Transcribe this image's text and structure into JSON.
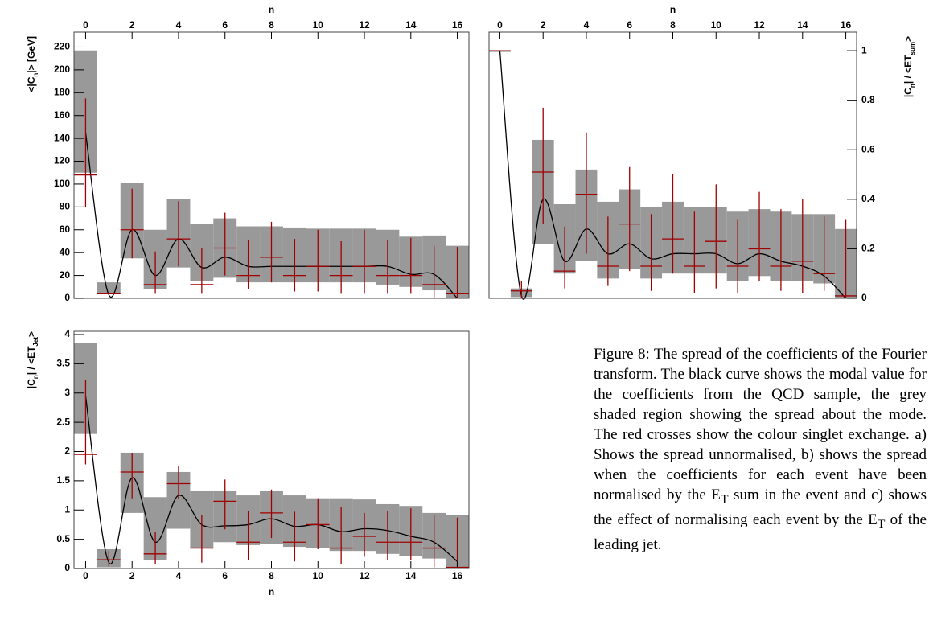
{
  "chart_data": [
    {
      "type": "spread",
      "x_label": "n",
      "y_label": [
        "<|C",
        "n",
        "|> [GeV]"
      ],
      "x_axis": "top",
      "y_axis": "left",
      "x": [
        0,
        1,
        2,
        3,
        4,
        5,
        6,
        7,
        8,
        9,
        10,
        11,
        12,
        13,
        14,
        15,
        16
      ],
      "xlim": [
        -0.5,
        16.5
      ],
      "xticks": [
        0,
        2,
        4,
        6,
        8,
        10,
        12,
        14,
        16
      ],
      "ylim": [
        0,
        233
      ],
      "yticks": [
        0,
        20,
        40,
        60,
        80,
        100,
        120,
        140,
        160,
        180,
        200,
        220
      ],
      "band": {
        "color": "#999999",
        "lower": [
          110,
          4,
          35,
          8,
          27,
          15,
          18,
          14,
          14,
          14,
          14,
          14,
          14,
          12,
          10,
          7,
          0
        ],
        "upper": [
          217,
          14,
          101,
          60,
          87,
          65,
          70,
          63,
          63,
          62,
          61,
          61,
          61,
          60,
          54,
          55,
          46
        ]
      },
      "points": {
        "color": "#a00000",
        "values": [
          108,
          4,
          60,
          12,
          52,
          12,
          44,
          20,
          36,
          20,
          28,
          20,
          28,
          20,
          20,
          12,
          4
        ],
        "lower": [
          80,
          4,
          35,
          4,
          28,
          4,
          20,
          8,
          14,
          6,
          6,
          4,
          4,
          4,
          4,
          0,
          0
        ],
        "upper": [
          175,
          4,
          96,
          41,
          85,
          44,
          75,
          51,
          67,
          52,
          60,
          50,
          60,
          51,
          53,
          46,
          45
        ]
      },
      "curve": {
        "color": "#000000",
        "values": [
          145,
          3,
          60,
          20,
          52,
          27,
          36,
          28,
          28,
          28,
          28,
          28,
          28,
          28,
          21,
          21,
          0
        ]
      }
    },
    {
      "type": "spread",
      "x_label": "n",
      "y_label": [
        "|C",
        "n",
        "| / <ET",
        "sum",
        ">"
      ],
      "x_axis": "top",
      "y_axis": "right",
      "x": [
        0,
        1,
        2,
        3,
        4,
        5,
        6,
        7,
        8,
        9,
        10,
        11,
        12,
        13,
        14,
        15,
        16
      ],
      "xlim": [
        -0.5,
        16.5
      ],
      "xticks": [
        0,
        2,
        4,
        6,
        8,
        10,
        12,
        14,
        16
      ],
      "ylim": [
        0,
        1.075
      ],
      "yticks": [
        0,
        0.2,
        0.4,
        0.6,
        0.8,
        1
      ],
      "band": {
        "color": "#999999",
        "lower": [
          0.995,
          0.005,
          0.22,
          0.1,
          0.15,
          0.08,
          0.12,
          0.08,
          0.1,
          0.1,
          0.1,
          0.07,
          0.09,
          0.07,
          0.07,
          0.06,
          0
        ],
        "upper": [
          1.0,
          0.04,
          0.64,
          0.38,
          0.52,
          0.39,
          0.44,
          0.37,
          0.39,
          0.37,
          0.37,
          0.35,
          0.36,
          0.35,
          0.34,
          0.34,
          0.28
        ]
      },
      "points": {
        "color": "#a00000",
        "values": [
          1.0,
          0.03,
          0.51,
          0.11,
          0.42,
          0.13,
          0.3,
          0.13,
          0.24,
          0.13,
          0.23,
          0.13,
          0.2,
          0.13,
          0.15,
          0.1,
          0.01
        ],
        "lower": [
          1.0,
          0,
          0.3,
          0.04,
          0.18,
          0.05,
          0.11,
          0.03,
          0.1,
          0.02,
          0.04,
          0.02,
          0.07,
          0.03,
          0.02,
          0.03,
          0
        ],
        "upper": [
          1.0,
          0.07,
          0.77,
          0.29,
          0.67,
          0.33,
          0.53,
          0.34,
          0.5,
          0.35,
          0.46,
          0.32,
          0.43,
          0.36,
          0.4,
          0.33,
          0.32
        ]
      },
      "curve": {
        "color": "#000000",
        "values": [
          1.0,
          0.01,
          0.4,
          0.15,
          0.28,
          0.18,
          0.22,
          0.16,
          0.18,
          0.18,
          0.18,
          0.14,
          0.18,
          0.15,
          0.13,
          0.09,
          0
        ]
      }
    },
    {
      "type": "spread",
      "x_label": "n",
      "y_label": [
        "|C",
        "n",
        "| / <ET",
        "Jet",
        ">"
      ],
      "x_axis": "bottom",
      "y_axis": "left",
      "x": [
        0,
        1,
        2,
        3,
        4,
        5,
        6,
        7,
        8,
        9,
        10,
        11,
        12,
        13,
        14,
        15,
        16
      ],
      "xlim": [
        -0.5,
        16.5
      ],
      "xticks": [
        0,
        2,
        4,
        6,
        8,
        10,
        12,
        14,
        16
      ],
      "ylim": [
        0,
        4.055
      ],
      "yticks": [
        0,
        0.5,
        1,
        1.5,
        2,
        2.5,
        3,
        3.5,
        4
      ],
      "band": {
        "color": "#999999",
        "lower": [
          2.3,
          0.02,
          0.95,
          0.15,
          0.68,
          0.35,
          0.45,
          0.4,
          0.42,
          0.37,
          0.35,
          0.3,
          0.3,
          0.25,
          0.22,
          0.17,
          0.02
        ],
        "upper": [
          3.85,
          0.33,
          1.98,
          1.22,
          1.65,
          1.32,
          1.32,
          1.25,
          1.32,
          1.25,
          1.2,
          1.2,
          1.18,
          1.1,
          1.07,
          0.95,
          0.92
        ]
      },
      "points": {
        "color": "#a00000",
        "values": [
          1.95,
          0.15,
          1.65,
          0.25,
          1.45,
          0.35,
          1.15,
          0.45,
          0.95,
          0.45,
          0.75,
          0.35,
          0.55,
          0.45,
          0.45,
          0.35,
          0.02
        ],
        "lower": [
          1.78,
          0.04,
          1.2,
          0.08,
          1.18,
          0.1,
          0.67,
          0.15,
          0.52,
          0.12,
          0.33,
          0.08,
          0.2,
          0.15,
          0.15,
          0.02,
          0
        ],
        "upper": [
          3.22,
          0.3,
          1.98,
          0.62,
          1.75,
          0.92,
          1.52,
          0.98,
          1.35,
          0.97,
          1.2,
          1.05,
          0.95,
          0.98,
          1.03,
          0.92,
          0.87
        ]
      },
      "curve": {
        "color": "#000000",
        "values": [
          2.95,
          0.1,
          1.55,
          0.45,
          1.25,
          0.75,
          0.73,
          0.75,
          0.85,
          0.72,
          0.75,
          0.63,
          0.68,
          0.65,
          0.55,
          0.45,
          0.12
        ]
      }
    }
  ],
  "caption": [
    "Figure 8: The spread of the coefficients of the Fourier transform. The black curve shows the modal value for the coefficients from the QCD sample, the grey shaded region showing the spread about the mode. The red crosses show the colour singlet exchange. a) Shows the spread unnormalised, b) shows the spread when the coefficients for each event have been normalised by the E",
    "T",
    " sum in the event and c) shows the effect of normalising each event by the E",
    "T",
    " of the leading jet."
  ]
}
